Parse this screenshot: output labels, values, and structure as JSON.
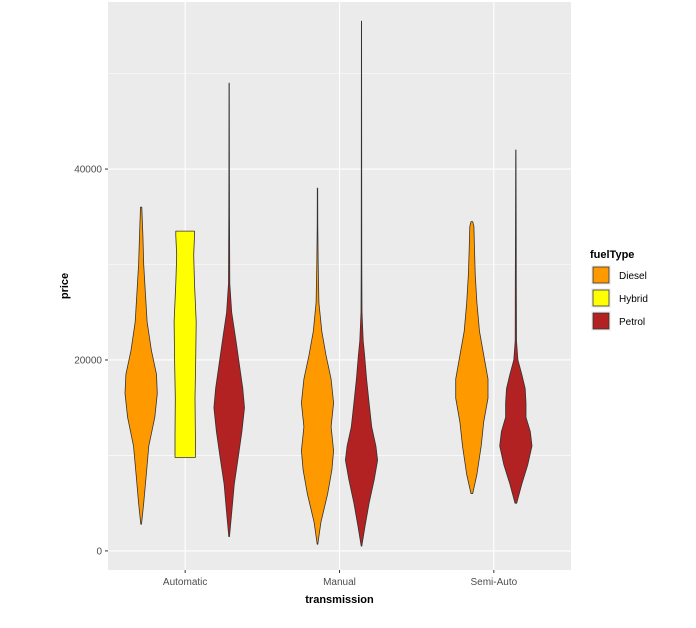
{
  "chart_data": {
    "type": "violin",
    "xlabel": "transmission",
    "ylabel": "price",
    "categories": [
      "Automatic",
      "Manual",
      "Semi-Auto"
    ],
    "ylim": [
      -2000,
      57500
    ],
    "yticks": [
      0,
      20000,
      40000
    ],
    "ytick_labels": [
      "0",
      "20000",
      "40000"
    ],
    "grid": true,
    "legend": {
      "title": "fuelType",
      "position": "right",
      "entries": [
        {
          "label": "Diesel",
          "color": "#ff9900"
        },
        {
          "label": "Hybrid",
          "color": "#ffff00"
        },
        {
          "label": "Petrol",
          "color": "#b22222"
        }
      ]
    },
    "series": [
      {
        "name": "Diesel",
        "color": "#ff9900",
        "violins": [
          {
            "category": "Automatic",
            "min": 2800,
            "max": 36000,
            "profile": [
              [
                2800,
                0.02
              ],
              [
                5000,
                0.15
              ],
              [
                8000,
                0.3
              ],
              [
                11000,
                0.45
              ],
              [
                14000,
                0.8
              ],
              [
                16500,
                0.95
              ],
              [
                18500,
                0.9
              ],
              [
                21000,
                0.6
              ],
              [
                24000,
                0.35
              ],
              [
                27000,
                0.25
              ],
              [
                30000,
                0.15
              ],
              [
                33000,
                0.1
              ],
              [
                36000,
                0.04
              ]
            ]
          },
          {
            "category": "Manual",
            "min": 700,
            "max": 38000,
            "profile": [
              [
                700,
                0.02
              ],
              [
                3000,
                0.2
              ],
              [
                6000,
                0.6
              ],
              [
                8500,
                0.85
              ],
              [
                10500,
                0.95
              ],
              [
                13000,
                0.8
              ],
              [
                15500,
                0.95
              ],
              [
                18000,
                0.8
              ],
              [
                20500,
                0.5
              ],
              [
                23000,
                0.25
              ],
              [
                26000,
                0.08
              ],
              [
                30000,
                0.04
              ],
              [
                34000,
                0.02
              ],
              [
                38000,
                0.01
              ]
            ]
          },
          {
            "category": "Semi-Auto",
            "min": 6000,
            "max": 34500,
            "profile": [
              [
                6000,
                0.05
              ],
              [
                8000,
                0.3
              ],
              [
                11000,
                0.55
              ],
              [
                13500,
                0.7
              ],
              [
                16000,
                0.95
              ],
              [
                18000,
                0.95
              ],
              [
                20000,
                0.75
              ],
              [
                23000,
                0.45
              ],
              [
                26000,
                0.3
              ],
              [
                29000,
                0.2
              ],
              [
                32000,
                0.15
              ],
              [
                34000,
                0.12
              ],
              [
                34500,
                0.05
              ]
            ]
          }
        ]
      },
      {
        "name": "Hybrid",
        "color": "#ffff00",
        "violins": [
          {
            "category": "Automatic",
            "min": 9800,
            "max": 33500,
            "profile": [
              [
                9800,
                0.6
              ],
              [
                12000,
                0.6
              ],
              [
                16000,
                0.58
              ],
              [
                20000,
                0.62
              ],
              [
                24000,
                0.65
              ],
              [
                28000,
                0.55
              ],
              [
                31000,
                0.5
              ],
              [
                33000,
                0.55
              ],
              [
                33500,
                0.55
              ]
            ]
          }
        ]
      },
      {
        "name": "Petrol",
        "color": "#b22222",
        "violins": [
          {
            "category": "Automatic",
            "min": 1500,
            "max": 49000,
            "profile": [
              [
                1500,
                0.02
              ],
              [
                4000,
                0.15
              ],
              [
                7000,
                0.3
              ],
              [
                10000,
                0.55
              ],
              [
                12500,
                0.75
              ],
              [
                15000,
                0.9
              ],
              [
                17000,
                0.8
              ],
              [
                19500,
                0.6
              ],
              [
                22000,
                0.4
              ],
              [
                25000,
                0.15
              ],
              [
                28000,
                0.04
              ],
              [
                35000,
                0.02
              ],
              [
                40000,
                0.015
              ],
              [
                49000,
                0.01
              ]
            ]
          },
          {
            "category": "Manual",
            "min": 500,
            "max": 55500,
            "profile": [
              [
                500,
                0.02
              ],
              [
                2500,
                0.2
              ],
              [
                5000,
                0.45
              ],
              [
                7500,
                0.75
              ],
              [
                9500,
                0.95
              ],
              [
                11000,
                0.85
              ],
              [
                13000,
                0.6
              ],
              [
                15500,
                0.45
              ],
              [
                18000,
                0.3
              ],
              [
                20500,
                0.18
              ],
              [
                22000,
                0.1
              ],
              [
                25000,
                0.03
              ],
              [
                30000,
                0.02
              ],
              [
                40000,
                0.01
              ],
              [
                55500,
                0.008
              ]
            ]
          },
          {
            "category": "Semi-Auto",
            "min": 5000,
            "max": 42000,
            "profile": [
              [
                5000,
                0.05
              ],
              [
                7000,
                0.35
              ],
              [
                9000,
                0.7
              ],
              [
                11000,
                0.95
              ],
              [
                12500,
                0.85
              ],
              [
                14000,
                0.6
              ],
              [
                15500,
                0.6
              ],
              [
                17000,
                0.55
              ],
              [
                18500,
                0.35
              ],
              [
                20000,
                0.12
              ],
              [
                22000,
                0.04
              ],
              [
                28000,
                0.03
              ],
              [
                34000,
                0.02
              ],
              [
                42000,
                0.01
              ]
            ]
          }
        ]
      }
    ]
  }
}
